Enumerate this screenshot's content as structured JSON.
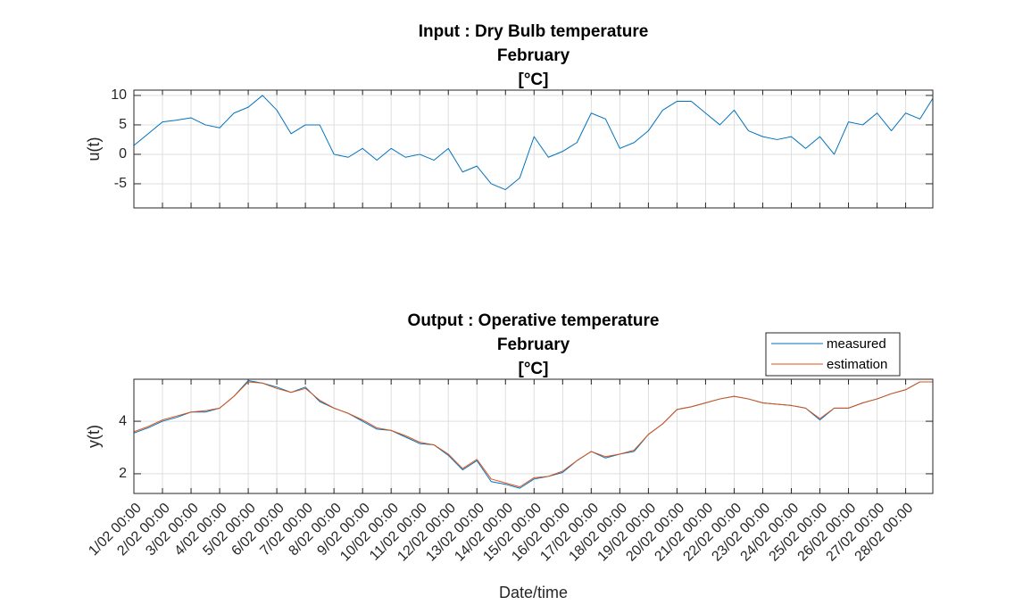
{
  "chart_data": [
    {
      "type": "line",
      "title": [
        "Input : Dry Bulb temperature",
        "February",
        "[°C]"
      ],
      "ylabel": "u(t)",
      "x": [
        0,
        0.5,
        1,
        1.5,
        2,
        2.5,
        3,
        3.5,
        4,
        4.5,
        5,
        5.5,
        6,
        6.5,
        7,
        7.5,
        8,
        8.5,
        9,
        9.5,
        10,
        10.5,
        11,
        11.5,
        12,
        12.5,
        13,
        13.5,
        14,
        14.5,
        15,
        15.5,
        16,
        16.5,
        17,
        17.5,
        18,
        18.5,
        19,
        19.5,
        20,
        20.5,
        21,
        21.5,
        22,
        22.5,
        23,
        23.5,
        24,
        24.5,
        25,
        25.5,
        26,
        26.5,
        27,
        27.5,
        27.95
      ],
      "series": [
        {
          "name": "u",
          "color": "#0072bd",
          "values": [
            1.5,
            3.5,
            5.5,
            5.8,
            6.2,
            5,
            4.5,
            7,
            8,
            10,
            7.5,
            3.5,
            5,
            5,
            0,
            -0.5,
            1,
            -1,
            1,
            -0.5,
            0,
            -1,
            1,
            -3,
            -2,
            -5,
            -6,
            -4,
            3,
            -0.5,
            0.5,
            2,
            7,
            6,
            1,
            2,
            4,
            7.5,
            9,
            9,
            7,
            5,
            7.5,
            4,
            3,
            2.5,
            3,
            1,
            3,
            0,
            5.5,
            5,
            7,
            4,
            7,
            6,
            9.5
          ]
        }
      ],
      "xlim": [
        0,
        27.95
      ],
      "ylim": [
        -9.1,
        10.9
      ],
      "xticks": [
        0,
        1,
        2,
        3,
        4,
        5,
        6,
        7,
        8,
        9,
        10,
        11,
        12,
        13,
        14,
        15,
        16,
        17,
        18,
        19,
        20,
        21,
        22,
        23,
        24,
        25,
        26,
        27
      ],
      "yticks": [
        -5,
        0,
        5,
        10
      ],
      "grid": true
    },
    {
      "type": "line",
      "title": [
        "Output :  Operative temperature",
        "February",
        "[°C]"
      ],
      "xlabel": "Date/time",
      "ylabel": "y(t)",
      "legend": "northeast",
      "x": [
        0,
        0.5,
        1,
        1.5,
        2,
        2.5,
        3,
        3.5,
        4,
        4.5,
        5,
        5.5,
        6,
        6.5,
        7,
        7.5,
        8,
        8.5,
        9,
        9.5,
        10,
        10.5,
        11,
        11.5,
        12,
        12.5,
        13,
        13.5,
        14,
        14.5,
        15,
        15.5,
        16,
        16.5,
        17,
        17.5,
        18,
        18.5,
        19,
        19.5,
        20,
        20.5,
        21,
        21.5,
        22,
        22.5,
        23,
        23.5,
        24,
        24.5,
        25,
        25.5,
        26,
        26.5,
        27,
        27.5,
        27.95
      ],
      "series": [
        {
          "name": "measured",
          "color": "#0072bd",
          "values": [
            3.55,
            3.75,
            4.0,
            4.15,
            4.35,
            4.35,
            4.5,
            4.95,
            5.55,
            5.45,
            5.3,
            5.1,
            5.3,
            4.75,
            4.5,
            4.3,
            4.0,
            3.7,
            3.65,
            3.4,
            3.15,
            3.1,
            2.7,
            2.15,
            2.5,
            1.7,
            1.6,
            1.45,
            1.8,
            1.9,
            2.05,
            2.5,
            2.85,
            2.6,
            2.75,
            2.85,
            3.5,
            3.9,
            4.45,
            4.55,
            4.7,
            4.85,
            4.95,
            4.85,
            4.7,
            4.65,
            4.6,
            4.5,
            4.05,
            4.5,
            4.5,
            4.7,
            4.85,
            5.05,
            5.2,
            5.5,
            5.5
          ]
        },
        {
          "name": "estimation",
          "color": "#d95319",
          "values": [
            3.6,
            3.8,
            4.05,
            4.2,
            4.35,
            4.4,
            4.5,
            4.95,
            5.5,
            5.45,
            5.25,
            5.1,
            5.25,
            4.8,
            4.5,
            4.3,
            4.05,
            3.75,
            3.65,
            3.45,
            3.2,
            3.1,
            2.75,
            2.2,
            2.55,
            1.8,
            1.65,
            1.5,
            1.85,
            1.9,
            2.1,
            2.5,
            2.85,
            2.65,
            2.75,
            2.9,
            3.5,
            3.9,
            4.45,
            4.55,
            4.7,
            4.85,
            4.95,
            4.85,
            4.7,
            4.65,
            4.6,
            4.5,
            4.1,
            4.5,
            4.5,
            4.7,
            4.85,
            5.05,
            5.2,
            5.5,
            5.5
          ]
        }
      ],
      "xlim": [
        0,
        27.95
      ],
      "ylim": [
        1.25,
        5.6
      ],
      "xticks": [
        {
          "value": 0,
          "label": "1/02 00:00"
        },
        {
          "value": 1,
          "label": "2/02 00:00"
        },
        {
          "value": 2,
          "label": "3/02 00:00"
        },
        {
          "value": 3,
          "label": "4/02 00:00"
        },
        {
          "value": 4,
          "label": "5/02 00:00"
        },
        {
          "value": 5,
          "label": "6/02 00:00"
        },
        {
          "value": 6,
          "label": "7/02 00:00"
        },
        {
          "value": 7,
          "label": "8/02 00:00"
        },
        {
          "value": 8,
          "label": "9/02 00:00"
        },
        {
          "value": 9,
          "label": "10/02 00:00"
        },
        {
          "value": 10,
          "label": "11/02 00:00"
        },
        {
          "value": 11,
          "label": "12/02 00:00"
        },
        {
          "value": 12,
          "label": "13/02 00:00"
        },
        {
          "value": 13,
          "label": "14/02 00:00"
        },
        {
          "value": 14,
          "label": "15/02 00:00"
        },
        {
          "value": 15,
          "label": "16/02 00:00"
        },
        {
          "value": 16,
          "label": "17/02 00:00"
        },
        {
          "value": 17,
          "label": "18/02 00:00"
        },
        {
          "value": 18,
          "label": "19/02 00:00"
        },
        {
          "value": 19,
          "label": "20/02 00:00"
        },
        {
          "value": 20,
          "label": "21/02 00:00"
        },
        {
          "value": 21,
          "label": "22/02 00:00"
        },
        {
          "value": 22,
          "label": "23/02 00:00"
        },
        {
          "value": 23,
          "label": "24/02 00:00"
        },
        {
          "value": 24,
          "label": "25/02 00:00"
        },
        {
          "value": 25,
          "label": "26/02 00:00"
        },
        {
          "value": 26,
          "label": "27/02 00:00"
        },
        {
          "value": 27,
          "label": "28/02 00:00"
        }
      ],
      "yticks": [
        2,
        4
      ],
      "grid": true
    }
  ]
}
